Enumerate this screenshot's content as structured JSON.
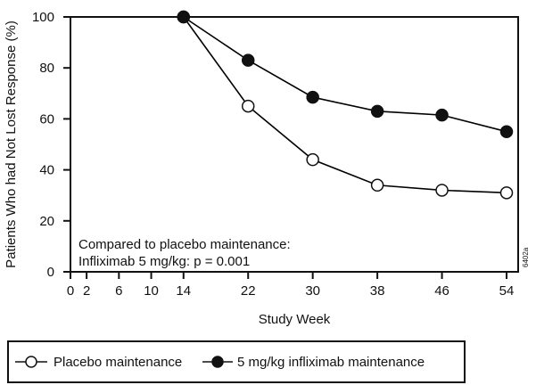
{
  "chart_data": {
    "type": "line",
    "title": "",
    "xlabel": "Study Week",
    "ylabel": "Patients Who had Not Lost Response (%)",
    "xlim": [
      0,
      54
    ],
    "ylim": [
      0,
      100
    ],
    "grid": false,
    "x_ticks": [
      0,
      2,
      6,
      10,
      14,
      22,
      30,
      38,
      46,
      54
    ],
    "y_ticks": [
      0,
      20,
      40,
      60,
      80,
      100
    ],
    "x": [
      14,
      22,
      30,
      38,
      46,
      54
    ],
    "series": [
      {
        "name": "Placebo maintenance",
        "marker": "open-circle",
        "color": "#000000",
        "values": [
          100,
          65,
          44,
          34,
          32,
          31
        ]
      },
      {
        "name": "5 mg/kg infliximab maintenance",
        "marker": "filled-circle",
        "color": "#000000",
        "values": [
          100,
          83,
          68.5,
          63,
          61.5,
          55
        ]
      }
    ],
    "annotations": [
      "Compared to placebo maintenance:",
      "Infliximab 5 mg/kg:  p = 0.001"
    ],
    "figure_code": "6402a",
    "legend_position": "bottom"
  }
}
